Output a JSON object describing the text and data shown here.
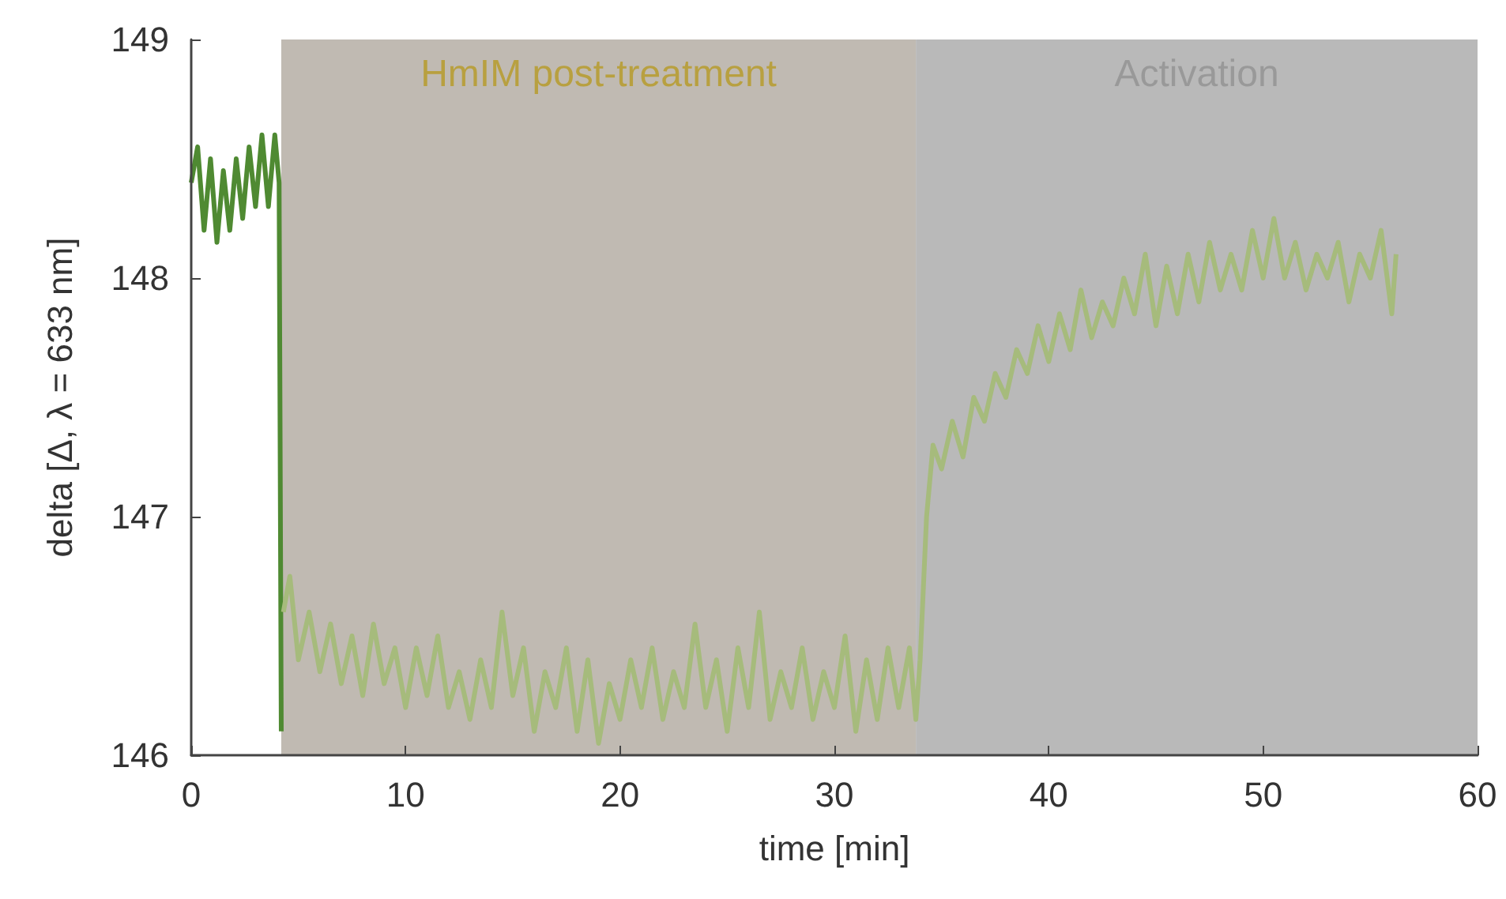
{
  "chart_data": {
    "type": "line",
    "xlabel": "time [min]",
    "ylabel": "delta [Δ, λ = 633 nm]",
    "xlim": [
      0,
      60
    ],
    "xticks": [
      0,
      10,
      20,
      30,
      40,
      50,
      60
    ],
    "ylim": [
      146,
      149
    ],
    "yticks": [
      146,
      147,
      148,
      149
    ],
    "grid": false,
    "marker": "none",
    "line_style": "solid",
    "bands": [
      {
        "axis": "x",
        "from": 4.2,
        "to": 33.8,
        "label": "HmIM post-treatment",
        "color": "#c0bab2"
      },
      {
        "axis": "x",
        "from": 33.8,
        "to": 60,
        "label": "Activation",
        "color": "#b9b9b9"
      }
    ],
    "series": [
      {
        "color": "#4f8a32",
        "x": [
          0,
          0.3,
          0.6,
          0.9,
          1.2,
          1.5,
          1.8,
          2.1,
          2.4,
          2.7,
          3.0,
          3.3,
          3.6,
          3.9,
          4.1,
          4.2
        ],
        "values": [
          148.4,
          148.55,
          148.2,
          148.5,
          148.15,
          148.45,
          148.2,
          148.5,
          148.25,
          148.55,
          148.3,
          148.6,
          148.3,
          148.6,
          148.4,
          146.1
        ]
      },
      {
        "color": "#a6bb7c",
        "x": [
          4.3,
          4.6,
          5,
          5.5,
          6,
          6.5,
          7,
          7.5,
          8,
          8.5,
          9,
          9.5,
          10,
          10.5,
          11,
          11.5,
          12,
          12.5,
          13,
          13.5,
          14,
          14.5,
          15,
          15.5,
          16,
          16.5,
          17,
          17.5,
          18,
          18.5,
          19,
          19.5,
          20,
          20.5,
          21,
          21.5,
          22,
          22.5,
          23,
          23.5,
          24,
          24.5,
          25,
          25.5,
          26,
          26.5,
          27,
          27.5,
          28,
          28.5,
          29,
          29.5,
          30,
          30.5,
          31,
          31.5,
          32,
          32.5,
          33,
          33.5,
          33.8,
          34.0,
          34.3,
          34.6,
          35,
          35.5,
          36,
          36.5,
          37,
          37.5,
          38,
          38.5,
          39,
          39.5,
          40,
          40.5,
          41,
          41.5,
          42,
          42.5,
          43,
          43.5,
          44,
          44.5,
          45,
          45.5,
          46,
          46.5,
          47,
          47.5,
          48,
          48.5,
          49,
          49.5,
          50,
          50.5,
          51,
          51.5,
          52,
          52.5,
          53,
          53.5,
          54,
          54.5,
          55,
          55.5,
          56,
          56.2
        ],
        "values": [
          146.6,
          146.75,
          146.4,
          146.6,
          146.35,
          146.55,
          146.3,
          146.5,
          146.25,
          146.55,
          146.3,
          146.45,
          146.2,
          146.45,
          146.25,
          146.5,
          146.2,
          146.35,
          146.15,
          146.4,
          146.2,
          146.6,
          146.25,
          146.45,
          146.1,
          146.35,
          146.2,
          146.45,
          146.1,
          146.4,
          146.05,
          146.3,
          146.15,
          146.4,
          146.2,
          146.45,
          146.15,
          146.35,
          146.2,
          146.55,
          146.2,
          146.4,
          146.1,
          146.45,
          146.2,
          146.6,
          146.15,
          146.35,
          146.2,
          146.45,
          146.15,
          146.35,
          146.2,
          146.5,
          146.1,
          146.4,
          146.15,
          146.45,
          146.2,
          146.45,
          146.15,
          146.4,
          147.0,
          147.3,
          147.2,
          147.4,
          147.25,
          147.5,
          147.4,
          147.6,
          147.5,
          147.7,
          147.6,
          147.8,
          147.65,
          147.85,
          147.7,
          147.95,
          147.75,
          147.9,
          147.8,
          148.0,
          147.85,
          148.1,
          147.8,
          148.05,
          147.85,
          148.1,
          147.9,
          148.15,
          147.95,
          148.1,
          147.95,
          148.2,
          148.0,
          148.25,
          148.0,
          148.15,
          147.95,
          148.1,
          148.0,
          148.15,
          147.9,
          148.1,
          148.0,
          148.2,
          147.85,
          148.1
        ]
      }
    ]
  }
}
